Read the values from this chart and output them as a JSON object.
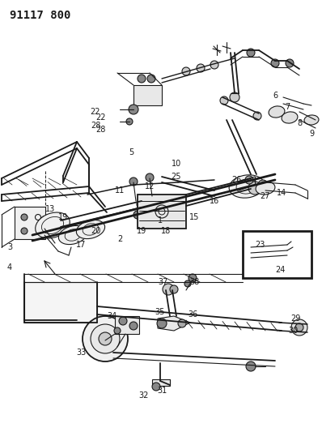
{
  "title": "91117 800",
  "bg_color": "#ffffff",
  "line_color": "#1a1a1a",
  "title_fontsize": 10,
  "label_fontsize": 7,
  "fig_width": 3.98,
  "fig_height": 5.33,
  "dpi": 100
}
